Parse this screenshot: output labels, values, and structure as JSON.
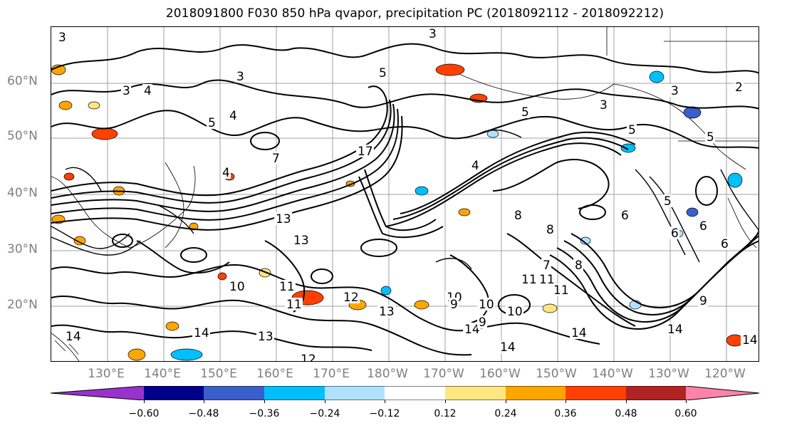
{
  "title": "2018091800 F030 850 hPa qvapor, precipitation PC (2018092112 - 2018092212)",
  "map": {
    "lat_labels": [
      "60°N",
      "50°N",
      "40°N",
      "30°N",
      "20°N"
    ],
    "lon_labels": [
      "130°E",
      "140°E",
      "150°E",
      "160°E",
      "170°E",
      "180°W",
      "170°W",
      "160°W",
      "150°W",
      "140°W",
      "130°W",
      "120°W"
    ],
    "contour_labels": [
      "3",
      "3",
      "3",
      "3",
      "5",
      "4",
      "5",
      "3",
      "3",
      "2",
      "5",
      "4",
      "4",
      "4",
      "5",
      "5",
      "7",
      "17",
      "13",
      "13",
      "11",
      "11",
      "10",
      "10",
      "12",
      "13",
      "13",
      "12",
      "14",
      "14",
      "14",
      "14",
      "14",
      "14",
      "14",
      "9",
      "10",
      "10",
      "11",
      "11",
      "11",
      "8",
      "8",
      "8",
      "5",
      "6",
      "6",
      "6",
      "6",
      "7",
      "9",
      "9"
    ],
    "contour_color": "#000000",
    "gridline_color": "#a0a0a0"
  },
  "colorbar": {
    "colors": [
      "#9932cc",
      "#00008b",
      "#3a5fcd",
      "#00bfff",
      "#b0e2ff",
      "#ffffff",
      "#ffe680",
      "#ffa500",
      "#ff4000",
      "#b22222",
      "#ff82ab"
    ],
    "tick_labels": [
      "−0.60",
      "−0.48",
      "−0.36",
      "−0.24",
      "−0.12",
      "0.12",
      "0.24",
      "0.36",
      "0.48",
      "0.60"
    ]
  }
}
